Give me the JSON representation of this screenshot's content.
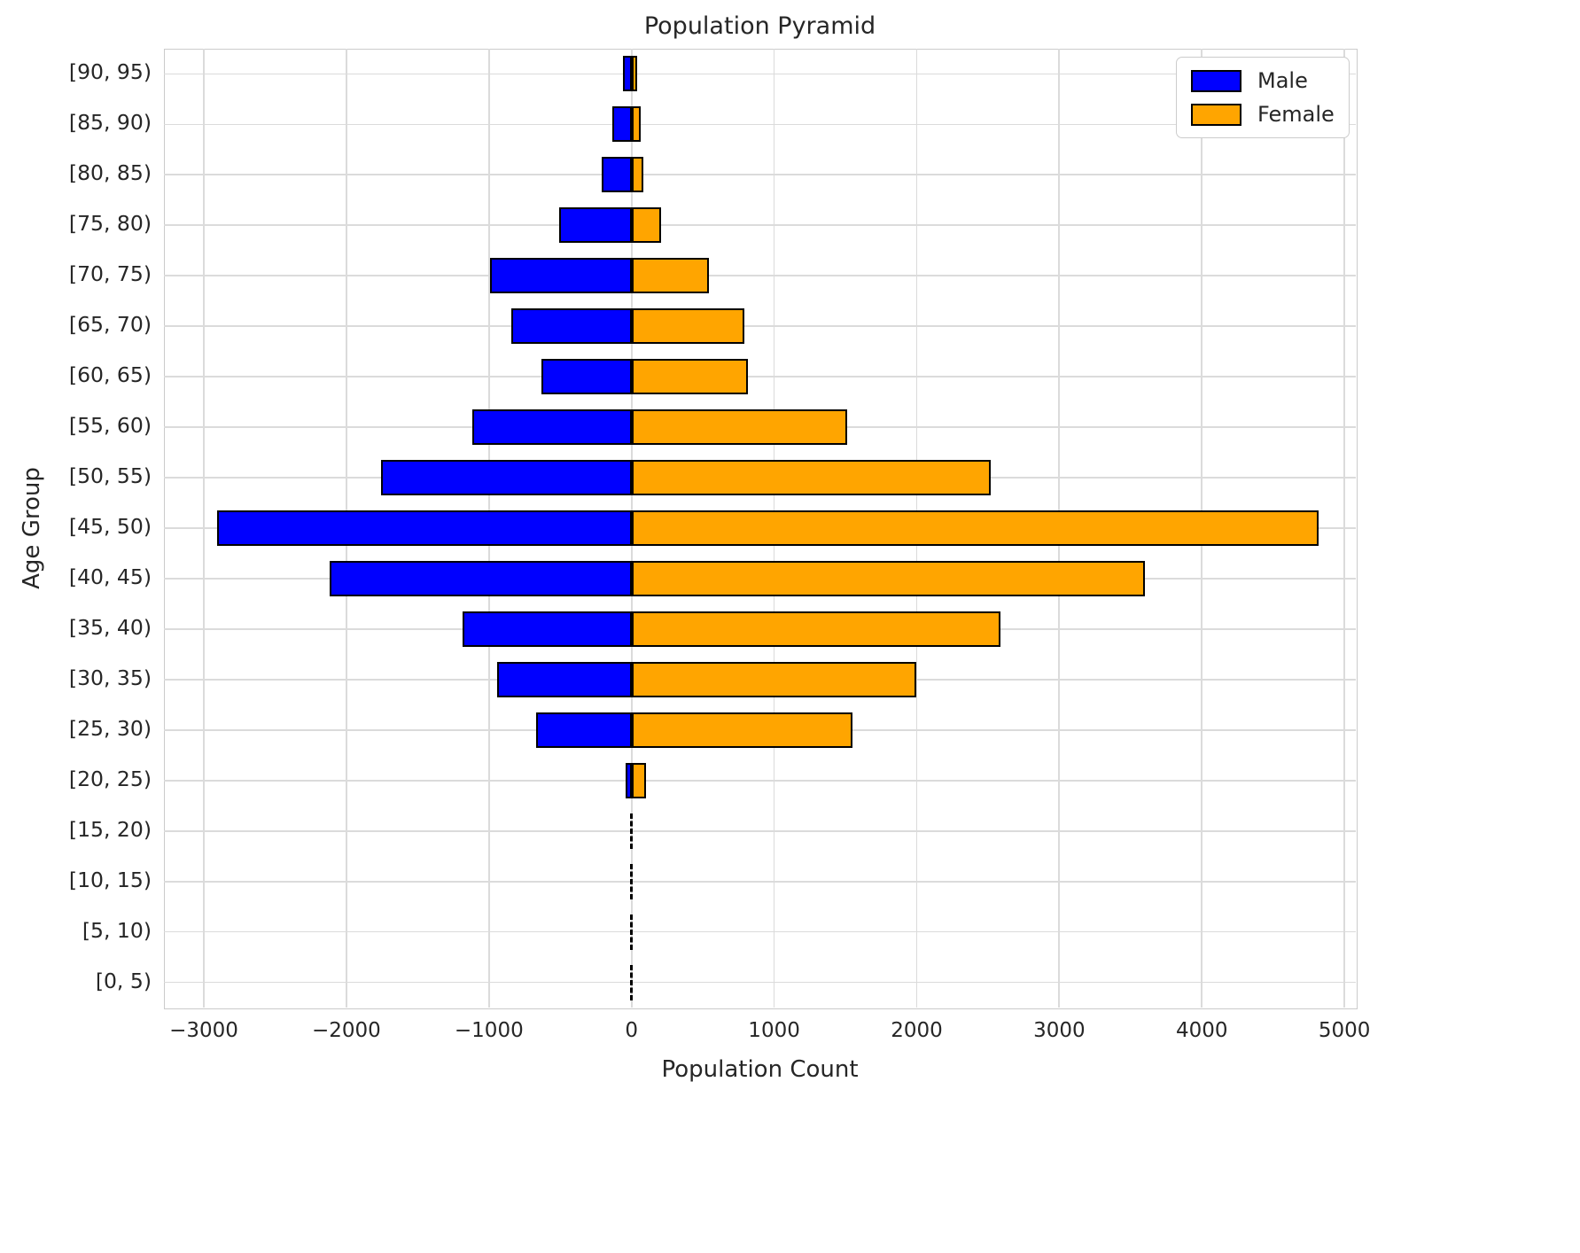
{
  "figure": {
    "title": "Population Pyramid",
    "xlabel": "Population Count",
    "ylabel": "Age Group"
  },
  "legend": {
    "position": "upper right",
    "items": [
      {
        "label": "Male",
        "color": "#0000FF"
      },
      {
        "label": "Female",
        "color": "#FFA500"
      }
    ]
  },
  "axes": {
    "x_ticks": [
      {
        "value": -3000,
        "label": "−3000"
      },
      {
        "value": -2000,
        "label": "−2000"
      },
      {
        "value": -1000,
        "label": "−1000"
      },
      {
        "value": 0,
        "label": "0"
      },
      {
        "value": 1000,
        "label": "1000"
      },
      {
        "value": 2000,
        "label": "2000"
      },
      {
        "value": 3000,
        "label": "3000"
      },
      {
        "value": 4000,
        "label": "4000"
      },
      {
        "value": 5000,
        "label": "5000"
      }
    ],
    "y_tick_labels_top_to_bottom": [
      "[90, 95)",
      "[85, 90)",
      "[80, 85)",
      "[75, 80)",
      "[70, 75)",
      "[65, 70)",
      "[60, 65)",
      "[55, 60)",
      "[50, 55)",
      "[45, 50)",
      "[40, 45)",
      "[35, 40)",
      "[30, 35)",
      "[25, 30)",
      "[20, 25)",
      "[15, 20)",
      "[10, 15)",
      "[5, 10)",
      "[0, 5)"
    ]
  },
  "colors": {
    "male": "#0000FF",
    "female": "#FFA500",
    "bar_edge": "#000000",
    "grid": "#DBDBDB",
    "spine": "#CBCBCB",
    "text": "#262626",
    "background": "#FFFFFF"
  },
  "chart_data": {
    "type": "bar",
    "orientation": "horizontal",
    "diverging": true,
    "title": "Population Pyramid",
    "xlabel": "Population Count",
    "ylabel": "Age Group",
    "grid": true,
    "legend_position": "upper right",
    "xlim": [
      -3280,
      5080
    ],
    "categories_bottom_to_top": [
      "[0, 5)",
      "[5, 10)",
      "[10, 15)",
      "[15, 20)",
      "[20, 25)",
      "[25, 30)",
      "[30, 35)",
      "[35, 40)",
      "[40, 45)",
      "[45, 50)",
      "[50, 55)",
      "[55, 60)",
      "[60, 65)",
      "[65, 70)",
      "[70, 75)",
      "[75, 80)",
      "[80, 85)",
      "[85, 90)",
      "[90, 95)"
    ],
    "series": [
      {
        "name": "Male",
        "color": "#0000FF",
        "values": [
          0,
          0,
          0,
          0,
          -40,
          -670,
          -940,
          -1185,
          -2115,
          -2905,
          -1760,
          -1115,
          -630,
          -845,
          -990,
          -505,
          -210,
          -135,
          -60
        ]
      },
      {
        "name": "Female",
        "color": "#FFA500",
        "values": [
          0,
          0,
          0,
          0,
          100,
          1550,
          2000,
          2590,
          3600,
          4820,
          2520,
          1510,
          815,
          790,
          540,
          205,
          85,
          65,
          20
        ]
      }
    ]
  }
}
